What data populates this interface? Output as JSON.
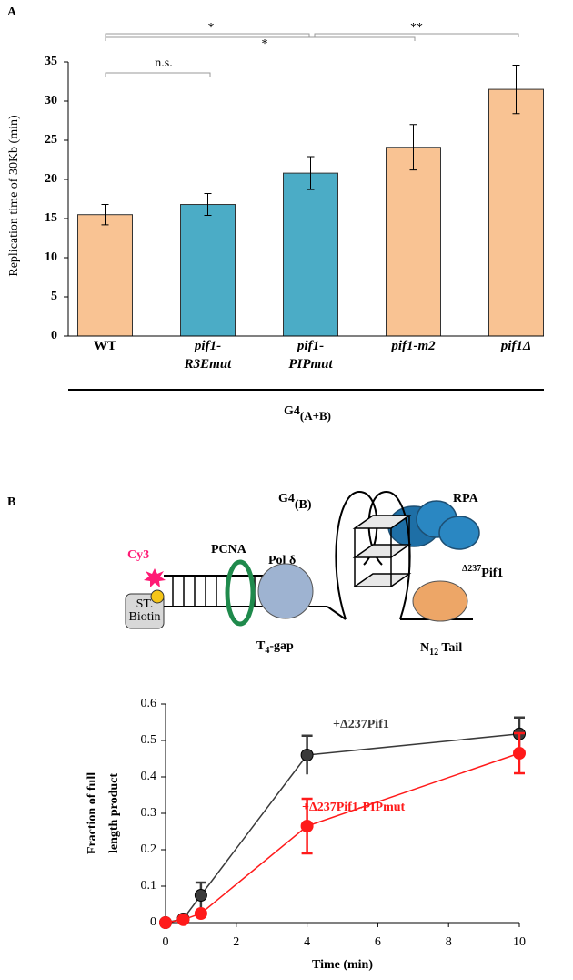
{
  "panel_labels": [
    "A",
    "B"
  ],
  "chart_data": [
    {
      "type": "bar",
      "ylabel": "Replication time of 30Kb (min)",
      "categories": [
        "WT",
        "pif1- R3Emut",
        "pif1- PIPmut",
        "pif1-m2",
        "pif1Δ"
      ],
      "values": [
        15.5,
        16.8,
        20.8,
        24.1,
        31.5
      ],
      "errors": [
        1.3,
        1.4,
        2.1,
        2.9,
        3.1
      ],
      "colors": [
        "#f9c393",
        "#4bacc6",
        "#4bacc6",
        "#f9c393",
        "#f9c393"
      ],
      "ylim": [
        0,
        35
      ],
      "yticks": [
        0,
        5,
        10,
        15,
        20,
        25,
        30,
        35
      ],
      "annotations": [
        "n.s.",
        "*",
        "*",
        "**"
      ],
      "group_label": {
        "main": "G4",
        "sub": "(A+B)"
      }
    },
    {
      "type": "line",
      "xlabel": "Time (min)",
      "ylabel": [
        "Fraction of full",
        "length product"
      ],
      "x": [
        0,
        0.5,
        1,
        4,
        10
      ],
      "series": [
        {
          "name": "+Δ237Pif1",
          "color": "#3a3a3a",
          "values": [
            0,
            0.01,
            0.075,
            0.46,
            0.518
          ],
          "errors": [
            0,
            0,
            0.035,
            0.053,
            0.045
          ]
        },
        {
          "name": "+Δ237Pif1-PIPmut",
          "color": "#ff1a1a",
          "values": [
            0,
            0.008,
            0.025,
            0.265,
            0.465
          ],
          "errors": [
            0,
            0,
            0,
            0.075,
            0.055
          ]
        }
      ],
      "xlim": [
        0,
        10
      ],
      "xticks": [
        0,
        2,
        4,
        6,
        8,
        10
      ],
      "ylim": [
        0,
        0.6
      ],
      "yticks": [
        0,
        0.1,
        0.2,
        0.3,
        0.4,
        0.5,
        0.6
      ]
    }
  ],
  "diagram": {
    "g4": {
      "main": "G4",
      "sub": "(B)"
    },
    "rpa": "RPA",
    "cy3": "Cy3",
    "pcna": "PCNA",
    "pol": "Pol δ",
    "pif1": {
      "sup": "Δ237",
      "main": "Pif1"
    },
    "biotin": [
      "ST.",
      "Biotin"
    ],
    "gap": {
      "main": "T",
      "sub": "4",
      "rest": "-gap"
    },
    "tail": {
      "main": "N",
      "sub": "12",
      "rest": " Tail"
    }
  }
}
